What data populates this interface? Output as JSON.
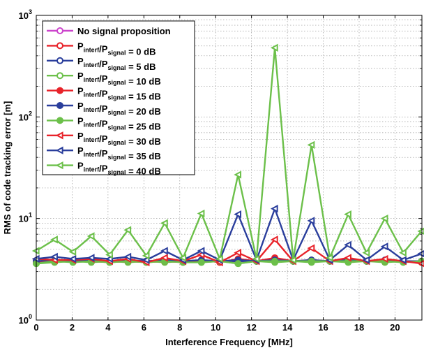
{
  "chart_data": {
    "type": "line",
    "xlabel": "Interference Frequency [MHz]",
    "ylabel": "RMS of code tracking error [m]",
    "xlim": [
      0,
      21.5
    ],
    "ylim": [
      1,
      1000
    ],
    "y_scale": "log",
    "grid": true,
    "legend_position": "top-left",
    "x_ticks": [
      "0",
      "2",
      "4",
      "6",
      "8",
      "10",
      "12",
      "14",
      "16",
      "18",
      "20"
    ],
    "y_ticks": [
      {
        "base": "10",
        "exp": "0"
      },
      {
        "base": "10",
        "exp": "1"
      },
      {
        "base": "10",
        "exp": "2"
      },
      {
        "base": "10",
        "exp": "3"
      }
    ],
    "x": [
      0,
      1.023,
      2.046,
      3.069,
      4.092,
      5.115,
      6.138,
      7.161,
      8.184,
      9.207,
      10.23,
      11.253,
      12.276,
      13.299,
      14.322,
      15.345,
      16.368,
      17.391,
      18.414,
      19.437,
      20.46,
      21.483
    ],
    "series": [
      {
        "legend": {
          "main": "No signal proposition",
          "parts": []
        },
        "color": "#cc44cc",
        "marker": "circle",
        "filled": false,
        "values": [
          3.8,
          3.8,
          3.8,
          3.8,
          3.8,
          3.8,
          3.8,
          3.8,
          3.8,
          3.8,
          3.8,
          3.8,
          3.8,
          3.8,
          3.8,
          3.8,
          3.8,
          3.8,
          3.8,
          3.8,
          3.8,
          3.8
        ]
      },
      {
        "legend": {
          "main": "",
          "parts": [
            {
              "t": "P"
            },
            {
              "t": "interf",
              "sub": true
            },
            {
              "t": "/P"
            },
            {
              "t": "signal",
              "sub": true
            },
            {
              "t": " = 0 dB"
            }
          ]
        },
        "color": "#e8232a",
        "marker": "circle",
        "filled": false,
        "values": [
          3.8,
          3.8,
          3.8,
          3.8,
          3.8,
          3.8,
          3.8,
          3.8,
          3.8,
          3.8,
          3.8,
          3.8,
          3.8,
          3.8,
          3.8,
          3.8,
          3.8,
          3.8,
          3.8,
          3.8,
          3.8,
          3.7
        ]
      },
      {
        "legend": {
          "main": "",
          "parts": [
            {
              "t": "P"
            },
            {
              "t": "interf",
              "sub": true
            },
            {
              "t": "/P"
            },
            {
              "t": "signal",
              "sub": true
            },
            {
              "t": " = 5 dB"
            }
          ]
        },
        "color": "#2a3e9c",
        "marker": "circle",
        "filled": false,
        "values": [
          3.8,
          3.8,
          3.8,
          3.8,
          3.8,
          3.8,
          3.8,
          3.8,
          3.8,
          3.8,
          3.8,
          3.8,
          3.8,
          3.8,
          3.8,
          3.8,
          3.8,
          3.8,
          3.8,
          3.8,
          3.8,
          3.8
        ]
      },
      {
        "legend": {
          "main": "",
          "parts": [
            {
              "t": "P"
            },
            {
              "t": "interf",
              "sub": true
            },
            {
              "t": "/P"
            },
            {
              "t": "signal",
              "sub": true
            },
            {
              "t": " = 10 dB"
            }
          ]
        },
        "color": "#6cc04a",
        "marker": "circle",
        "filled": false,
        "values": [
          3.6,
          3.7,
          3.8,
          3.7,
          3.8,
          3.7,
          3.8,
          3.7,
          3.8,
          3.7,
          3.8,
          3.6,
          3.8,
          3.7,
          3.8,
          3.7,
          3.8,
          3.7,
          3.8,
          3.7,
          3.8,
          3.7
        ]
      },
      {
        "legend": {
          "main": "",
          "parts": [
            {
              "t": "P"
            },
            {
              "t": "interf",
              "sub": true
            },
            {
              "t": "/P"
            },
            {
              "t": "signal",
              "sub": true
            },
            {
              "t": " = 15 dB"
            }
          ]
        },
        "color": "#e8232a",
        "marker": "circle",
        "filled": true,
        "values": [
          3.7,
          3.8,
          3.8,
          3.8,
          3.7,
          3.8,
          3.7,
          3.8,
          3.7,
          3.9,
          3.7,
          4.0,
          3.8,
          4.1,
          3.8,
          3.9,
          3.8,
          3.9,
          3.8,
          3.8,
          3.8,
          3.7
        ]
      },
      {
        "legend": {
          "main": "",
          "parts": [
            {
              "t": "P"
            },
            {
              "t": "interf",
              "sub": true
            },
            {
              "t": "/P"
            },
            {
              "t": "signal",
              "sub": true
            },
            {
              "t": " = 20 dB"
            }
          ]
        },
        "color": "#2a3e9c",
        "marker": "circle",
        "filled": true,
        "values": [
          3.8,
          3.9,
          3.8,
          3.9,
          3.8,
          3.9,
          3.8,
          3.9,
          3.8,
          3.9,
          3.8,
          3.9,
          3.8,
          3.9,
          3.8,
          3.9,
          3.8,
          3.9,
          3.8,
          3.9,
          3.8,
          3.8
        ]
      },
      {
        "legend": {
          "main": "",
          "parts": [
            {
              "t": "P"
            },
            {
              "t": "interf",
              "sub": true
            },
            {
              "t": "/P"
            },
            {
              "t": "signal",
              "sub": true
            },
            {
              "t": " = 25 dB"
            }
          ]
        },
        "color": "#6cc04a",
        "marker": "circle",
        "filled": true,
        "values": [
          3.6,
          3.8,
          3.7,
          3.8,
          3.7,
          3.8,
          3.7,
          3.8,
          3.7,
          3.7,
          3.8,
          3.6,
          3.8,
          3.8,
          3.8,
          3.8,
          3.8,
          3.8,
          3.8,
          3.8,
          3.7,
          3.8
        ]
      },
      {
        "legend": {
          "main": "",
          "parts": [
            {
              "t": "P"
            },
            {
              "t": "interf",
              "sub": true
            },
            {
              "t": "/P"
            },
            {
              "t": "signal",
              "sub": true
            },
            {
              "t": " = 30 dB"
            }
          ]
        },
        "color": "#e8232a",
        "marker": "triangle-left",
        "filled": false,
        "values": [
          4.0,
          3.9,
          3.9,
          4.0,
          3.8,
          4.0,
          3.7,
          4.1,
          3.8,
          4.4,
          3.7,
          4.6,
          3.8,
          6.2,
          3.8,
          5.1,
          3.8,
          4.1,
          3.8,
          4.0,
          3.8,
          3.6
        ]
      },
      {
        "legend": {
          "main": "",
          "parts": [
            {
              "t": "P"
            },
            {
              "t": "interf",
              "sub": true
            },
            {
              "t": "/P"
            },
            {
              "t": "signal",
              "sub": true
            },
            {
              "t": " = 35 dB"
            }
          ]
        },
        "color": "#2a3e9c",
        "marker": "triangle-left",
        "filled": false,
        "values": [
          4.0,
          4.2,
          4.0,
          4.1,
          4.0,
          4.2,
          3.9,
          4.8,
          3.9,
          4.8,
          3.9,
          11,
          3.9,
          12.5,
          3.9,
          9.5,
          3.9,
          5.5,
          3.9,
          5.3,
          3.9,
          4.5
        ]
      },
      {
        "legend": {
          "main": "",
          "parts": [
            {
              "t": "P"
            },
            {
              "t": "interf",
              "sub": true
            },
            {
              "t": "/P"
            },
            {
              "t": "signal",
              "sub": true
            },
            {
              "t": " = 40 dB"
            }
          ]
        },
        "color": "#6cc04a",
        "marker": "triangle-left",
        "filled": false,
        "values": [
          4.8,
          6.2,
          4.7,
          6.7,
          4.4,
          7.7,
          4.3,
          9.0,
          4.1,
          11.2,
          4.0,
          27,
          4.0,
          480,
          3.9,
          53,
          4.1,
          11,
          4.6,
          10,
          4.6,
          7.5
        ]
      }
    ]
  }
}
